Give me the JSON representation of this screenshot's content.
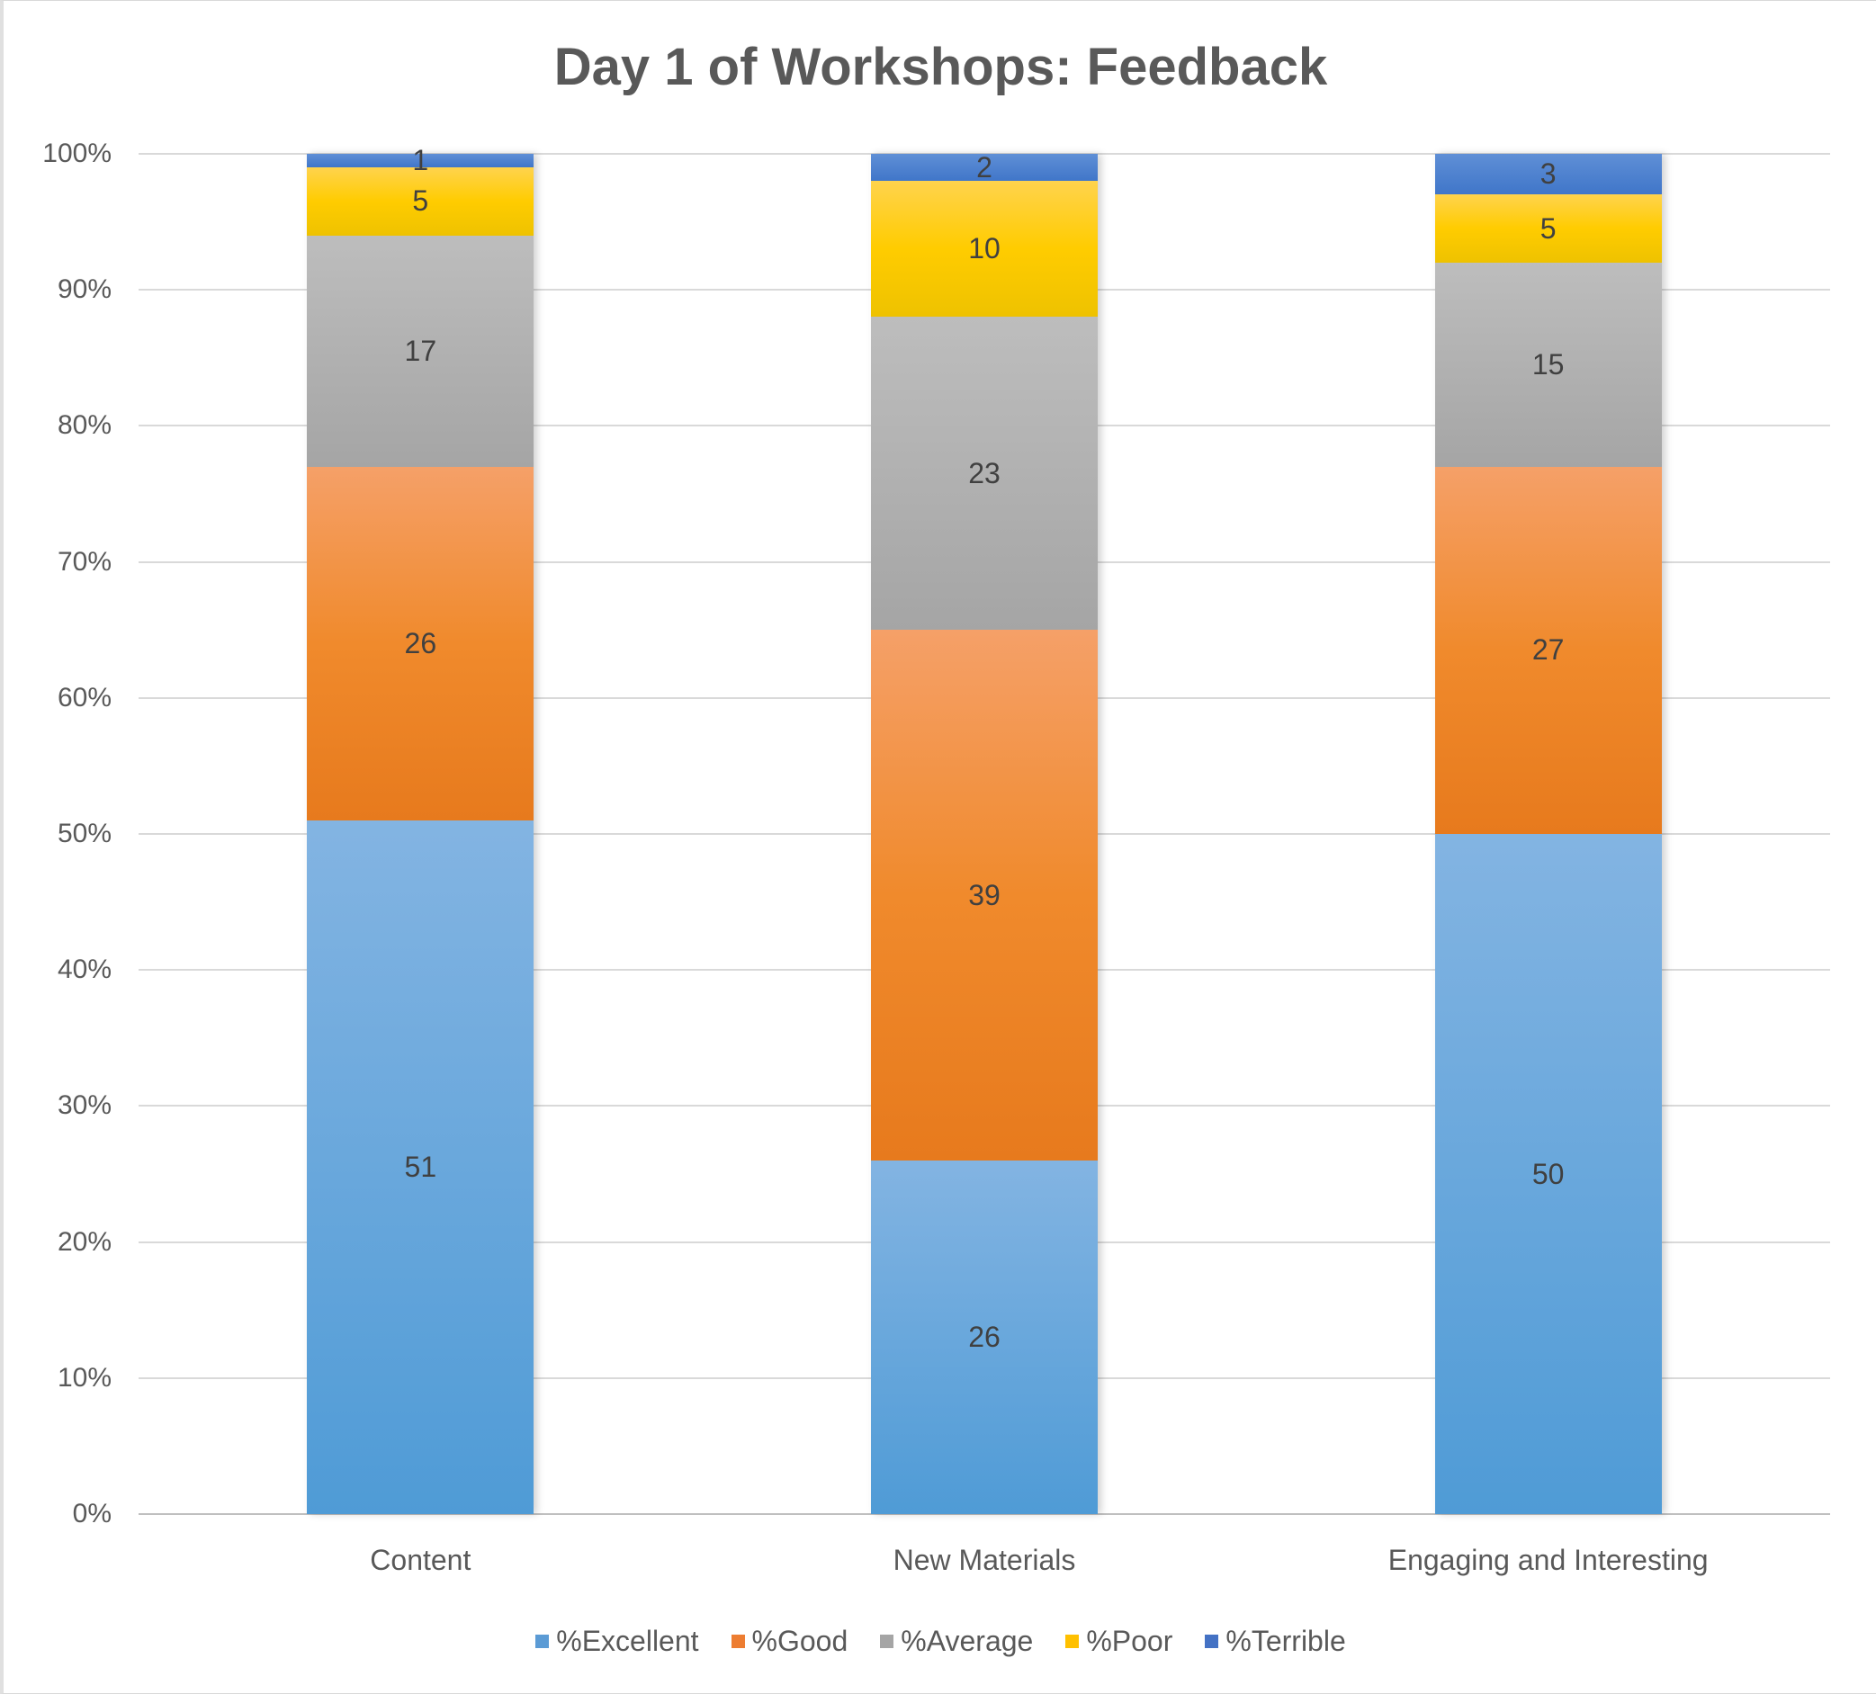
{
  "chart_data": {
    "type": "bar",
    "stacked": "percent",
    "title": "Day 1 of Workshops: Feedback",
    "xlabel": "",
    "ylabel": "",
    "ylim": [
      0,
      100
    ],
    "ytick_labels": [
      "0%",
      "10%",
      "20%",
      "30%",
      "40%",
      "50%",
      "60%",
      "70%",
      "80%",
      "90%",
      "100%"
    ],
    "grid": true,
    "legend_position": "bottom",
    "categories": [
      "Content",
      "New Materials",
      "Engaging and Interesting"
    ],
    "series": [
      {
        "name": "%Excellent",
        "color": "#5b9bd5",
        "values": [
          51,
          26,
          50
        ]
      },
      {
        "name": "%Good",
        "color": "#ed7d31",
        "values": [
          26,
          39,
          27
        ]
      },
      {
        "name": "%Average",
        "color": "#a5a5a5",
        "values": [
          17,
          23,
          15
        ]
      },
      {
        "name": "%Poor",
        "color": "#ffc000",
        "values": [
          5,
          10,
          5
        ]
      },
      {
        "name": "%Terrible",
        "color": "#4472c4",
        "values": [
          1,
          2,
          3
        ]
      }
    ]
  }
}
